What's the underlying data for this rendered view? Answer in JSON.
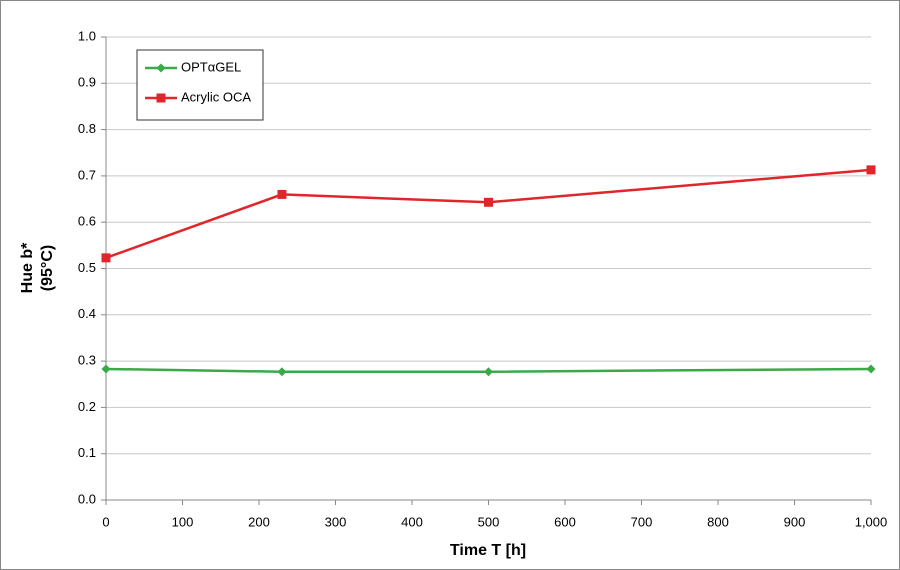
{
  "chart_data": {
    "type": "line",
    "xlabel": "Time T [h]",
    "ylabel": [
      "Hue b*",
      "(95°C)"
    ],
    "x": [
      0,
      230,
      500,
      1000
    ],
    "series": [
      {
        "name": "OPTαGEL",
        "color": "#3aaa48",
        "marker": "diamond",
        "values": [
          0.283,
          0.277,
          0.277,
          0.283
        ]
      },
      {
        "name": "Acrylic OCA",
        "color": "#e0262b",
        "marker": "square",
        "values": [
          0.523,
          0.66,
          0.643,
          0.713
        ]
      }
    ],
    "xlim": [
      0,
      1000
    ],
    "xticks": [
      0,
      100,
      200,
      300,
      400,
      500,
      600,
      700,
      800,
      900,
      {
        "value": 1000,
        "label": "1,000"
      }
    ],
    "ylim": [
      0,
      1
    ],
    "yticks": [
      {
        "value": 0,
        "label": "0.0"
      },
      0.1,
      0.2,
      0.3,
      0.4,
      0.5,
      0.6,
      0.7,
      0.8,
      0.9,
      {
        "value": 1,
        "label": "1.0"
      }
    ],
    "grid": true,
    "legend": "upper-left"
  }
}
